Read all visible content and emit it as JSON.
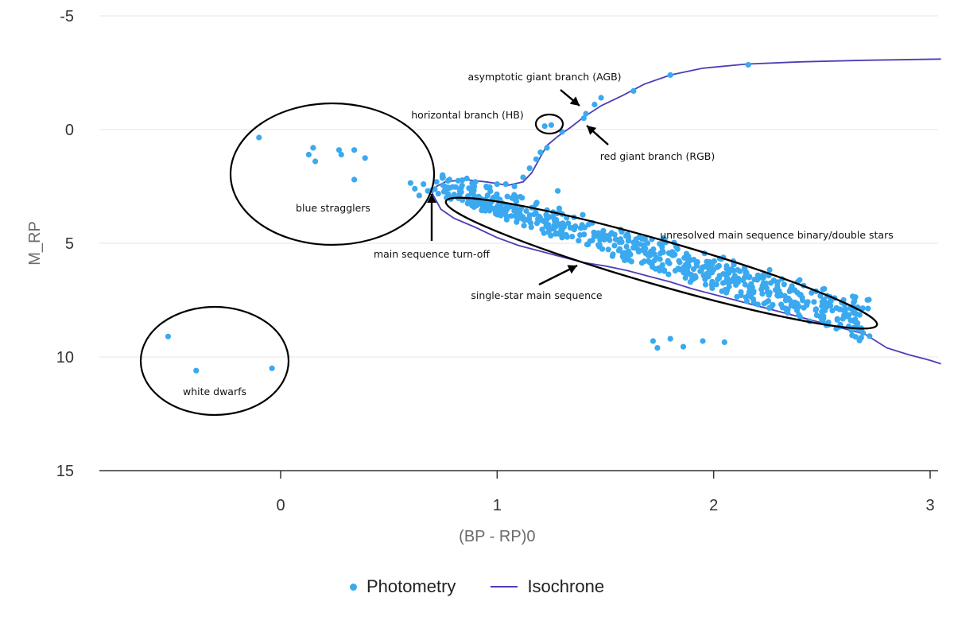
{
  "chart_data": {
    "type": "scatter",
    "xlabel": "(BP - RP)0",
    "ylabel": "M_RP",
    "xlim": [
      -0.85,
      3.05
    ],
    "ylim": [
      15,
      -5
    ],
    "y_inverted": true,
    "grid": "horizontal",
    "x_ticks": [
      "0",
      "1",
      "2",
      "3"
    ],
    "y_ticks": [
      "-5",
      "0",
      "5",
      "10",
      "15"
    ],
    "legend_position": "bottom-center",
    "colors": {
      "photometry": "#3aa9f0",
      "isochrone": "#4a3fb5",
      "annotation": "#000000"
    },
    "series": [
      {
        "name": "Photometry",
        "kind": "scatter",
        "points": [
          [
            -0.52,
            9.1
          ],
          [
            -0.39,
            10.6
          ],
          [
            -0.04,
            10.5
          ],
          [
            -0.1,
            0.35
          ],
          [
            0.13,
            1.1
          ],
          [
            0.15,
            0.8
          ],
          [
            0.16,
            1.4
          ],
          [
            0.27,
            0.9
          ],
          [
            0.28,
            1.1
          ],
          [
            0.34,
            0.9
          ],
          [
            0.34,
            2.2
          ],
          [
            0.39,
            1.25
          ],
          [
            0.6,
            2.35
          ],
          [
            0.62,
            2.6
          ],
          [
            0.64,
            2.9
          ],
          [
            0.66,
            2.4
          ],
          [
            0.68,
            2.7
          ],
          [
            0.72,
            2.3
          ],
          [
            0.75,
            2.1
          ],
          [
            0.78,
            2.2
          ],
          [
            0.82,
            2.25
          ],
          [
            0.86,
            2.15
          ],
          [
            0.9,
            2.3
          ],
          [
            0.95,
            2.5
          ],
          [
            1.0,
            2.4
          ],
          [
            1.04,
            2.4
          ],
          [
            1.08,
            2.5
          ],
          [
            1.12,
            2.1
          ],
          [
            1.15,
            1.7
          ],
          [
            1.18,
            1.3
          ],
          [
            1.2,
            1.0
          ],
          [
            1.23,
            0.8
          ],
          [
            1.22,
            -0.15
          ],
          [
            1.25,
            -0.2
          ],
          [
            1.3,
            0.1
          ],
          [
            1.41,
            -0.7
          ],
          [
            1.45,
            -1.1
          ],
          [
            1.48,
            -1.4
          ],
          [
            1.4,
            -0.5
          ],
          [
            1.63,
            -1.7
          ],
          [
            1.8,
            -2.4
          ],
          [
            2.16,
            -2.85
          ],
          [
            1.28,
            2.7
          ],
          [
            1.72,
            9.3
          ],
          [
            1.74,
            9.6
          ],
          [
            1.8,
            9.2
          ],
          [
            1.86,
            9.55
          ],
          [
            1.95,
            9.3
          ],
          [
            2.05,
            9.35
          ]
        ],
        "main_sequence_band": {
          "color_range": [
            0.72,
            2.72
          ],
          "magnitude_at_blue_end": 2.7,
          "magnitude_at_red_end": 8.8,
          "count": 640
        }
      },
      {
        "name": "Isochrone",
        "kind": "line",
        "points": [
          [
            0.7,
            2.8
          ],
          [
            0.72,
            2.5
          ],
          [
            0.76,
            2.3
          ],
          [
            0.85,
            2.2
          ],
          [
            0.95,
            2.3
          ],
          [
            1.05,
            2.45
          ],
          [
            1.12,
            2.3
          ],
          [
            1.16,
            1.9
          ],
          [
            1.2,
            1.2
          ],
          [
            1.23,
            0.7
          ],
          [
            1.28,
            0.3
          ],
          [
            1.34,
            -0.1
          ],
          [
            1.4,
            -0.55
          ],
          [
            1.48,
            -1.05
          ],
          [
            1.58,
            -1.5
          ],
          [
            1.68,
            -2.0
          ],
          [
            1.8,
            -2.4
          ],
          [
            1.95,
            -2.7
          ],
          [
            2.15,
            -2.88
          ],
          [
            2.4,
            -2.98
          ],
          [
            2.7,
            -3.05
          ],
          [
            3.05,
            -3.1
          ]
        ],
        "lower_branch": [
          [
            0.7,
            2.8
          ],
          [
            0.74,
            3.5
          ],
          [
            0.8,
            3.9
          ],
          [
            0.9,
            4.3
          ],
          [
            1.0,
            4.75
          ],
          [
            1.1,
            5.1
          ],
          [
            1.2,
            5.35
          ],
          [
            1.3,
            5.6
          ],
          [
            1.4,
            5.85
          ],
          [
            1.5,
            6.0
          ],
          [
            1.6,
            6.2
          ],
          [
            1.7,
            6.45
          ],
          [
            1.8,
            6.7
          ],
          [
            1.9,
            7.0
          ],
          [
            2.0,
            7.25
          ],
          [
            2.1,
            7.5
          ],
          [
            2.2,
            7.75
          ],
          [
            2.3,
            8.0
          ],
          [
            2.4,
            8.25
          ],
          [
            2.5,
            8.5
          ],
          [
            2.6,
            8.75
          ],
          [
            2.7,
            9.0
          ],
          [
            2.8,
            9.6
          ],
          [
            2.9,
            9.9
          ],
          [
            3.0,
            10.15
          ],
          [
            3.05,
            10.3
          ]
        ]
      }
    ],
    "annotations": {
      "labels": {
        "blue_stragglers": "blue stragglers",
        "white_dwarfs": "white dwarfs",
        "agb": "asymptotic giant branch (AGB)",
        "hb": "horizontal branch (HB)",
        "rgb": "red giant branch (RGB)",
        "turnoff": "main sequence turn-off",
        "binaries": "unresolved main sequence binary/double stars",
        "single_ms": "single-star main sequence"
      }
    }
  },
  "legend": {
    "photometry_label": "Photometry",
    "isochrone_label": "Isochrone"
  }
}
